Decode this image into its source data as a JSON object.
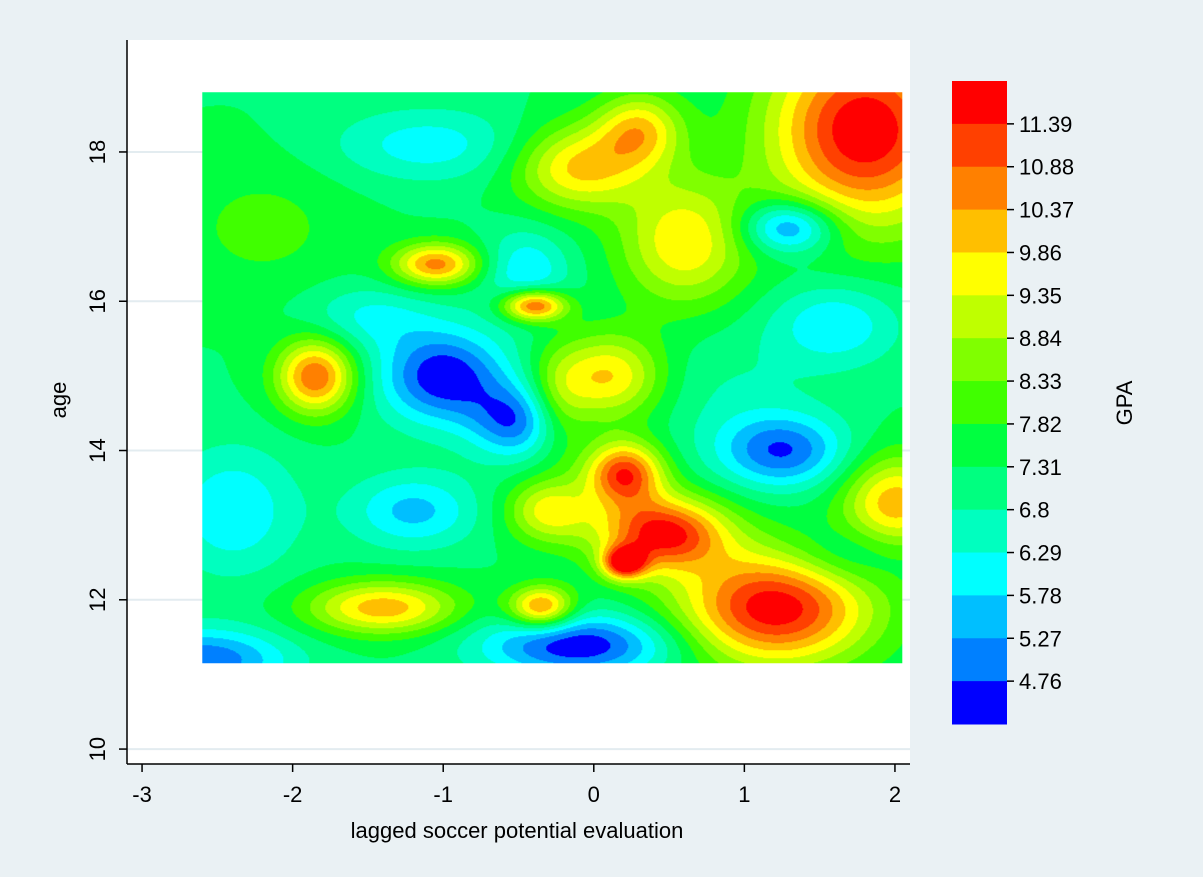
{
  "chart_data": {
    "type": "heatmap",
    "title": "",
    "xlabel": "lagged soccer potential evaluation",
    "ylabel": "age",
    "xlim": [
      -3.1,
      2.1
    ],
    "ylim": [
      9.8,
      19.5
    ],
    "x_ticks": [
      -3,
      -2,
      -1,
      0,
      1,
      2
    ],
    "y_ticks": [
      10,
      12,
      14,
      16,
      18
    ],
    "grid": true,
    "data_extent": {
      "x": [
        -2.6,
        2.05
      ],
      "y": [
        11.15,
        18.8
      ]
    },
    "colorbar": {
      "label": "GPA",
      "placement": "right",
      "levels": [
        "11.39",
        "10.88",
        "10.37",
        "9.86",
        "9.35",
        "8.84",
        "8.33",
        "7.82",
        "7.31",
        "6.8",
        "6.29",
        "5.78",
        "5.27",
        "4.76"
      ],
      "colors": [
        "#ff0000",
        "#ff4000",
        "#ff8000",
        "#ffbf00",
        "#ffff00",
        "#bfff00",
        "#80ff00",
        "#40ff00",
        "#00ff40",
        "#00ff80",
        "#00ffbf",
        "#00ffff",
        "#00bfff",
        "#0080ff",
        "#0000ff"
      ]
    },
    "z_range": [
      4.25,
      11.9
    ],
    "base_value": 7.3,
    "features": [
      {
        "x": 1.8,
        "y": 18.3,
        "value": 11.9,
        "sx": 0.45,
        "sy": 0.9
      },
      {
        "x": 1.3,
        "y": 17.0,
        "value": 4.6,
        "sx": 0.22,
        "sy": 0.25
      },
      {
        "x": -1.0,
        "y": 15.0,
        "value": 4.3,
        "sx": 0.3,
        "sy": 0.45
      },
      {
        "x": -0.5,
        "y": 14.4,
        "value": 4.8,
        "sx": 0.22,
        "sy": 0.35
      },
      {
        "x": 1.25,
        "y": 14.0,
        "value": 4.8,
        "sx": 0.3,
        "sy": 0.35
      },
      {
        "x": 1.2,
        "y": 11.9,
        "value": 11.8,
        "sx": 0.45,
        "sy": 0.55
      },
      {
        "x": 0.45,
        "y": 12.9,
        "value": 11.6,
        "sx": 0.3,
        "sy": 0.35
      },
      {
        "x": 0.2,
        "y": 13.7,
        "value": 11.3,
        "sx": 0.18,
        "sy": 0.3
      },
      {
        "x": 0.2,
        "y": 12.5,
        "value": 11.3,
        "sx": 0.1,
        "sy": 0.15
      },
      {
        "x": -0.1,
        "y": 11.4,
        "value": 4.3,
        "sx": 0.45,
        "sy": 0.3
      },
      {
        "x": -2.6,
        "y": 11.2,
        "value": 4.8,
        "sx": 0.4,
        "sy": 0.3
      },
      {
        "x": -1.85,
        "y": 15.0,
        "value": 10.9,
        "sx": 0.18,
        "sy": 0.35
      },
      {
        "x": -1.05,
        "y": 16.5,
        "value": 10.6,
        "sx": 0.2,
        "sy": 0.2
      },
      {
        "x": -0.45,
        "y": 16.4,
        "value": 5.8,
        "sx": 0.2,
        "sy": 0.4
      },
      {
        "x": -0.4,
        "y": 15.95,
        "value": 11.4,
        "sx": 0.15,
        "sy": 0.15
      },
      {
        "x": -1.1,
        "y": 18.1,
        "value": 6.0,
        "sx": 0.45,
        "sy": 0.35
      },
      {
        "x": -0.1,
        "y": 17.8,
        "value": 10.0,
        "sx": 0.3,
        "sy": 0.4
      },
      {
        "x": 0.3,
        "y": 18.3,
        "value": 9.8,
        "sx": 0.2,
        "sy": 0.35
      },
      {
        "x": 1.6,
        "y": 15.7,
        "value": 5.8,
        "sx": 0.3,
        "sy": 0.4
      },
      {
        "x": -2.4,
        "y": 13.2,
        "value": 5.8,
        "sx": 0.3,
        "sy": 0.6
      },
      {
        "x": -1.2,
        "y": 13.2,
        "value": 5.6,
        "sx": 0.3,
        "sy": 0.35
      },
      {
        "x": -1.4,
        "y": 11.9,
        "value": 10.2,
        "sx": 0.35,
        "sy": 0.25
      },
      {
        "x": 0.6,
        "y": 16.8,
        "value": 9.8,
        "sx": 0.3,
        "sy": 0.6
      },
      {
        "x": 0.1,
        "y": 15.0,
        "value": 9.9,
        "sx": 0.25,
        "sy": 0.4
      },
      {
        "x": 2.0,
        "y": 13.3,
        "value": 10.2,
        "sx": 0.25,
        "sy": 0.45
      },
      {
        "x": -0.35,
        "y": 11.9,
        "value": 10.8,
        "sx": 0.15,
        "sy": 0.2
      },
      {
        "x": -2.2,
        "y": 17.0,
        "value": 8.0,
        "sx": 0.4,
        "sy": 0.6
      },
      {
        "x": -1.5,
        "y": 15.8,
        "value": 6.2,
        "sx": 0.3,
        "sy": 0.3
      },
      {
        "x": -0.25,
        "y": 14.6,
        "value": 8.8,
        "sx": 0.15,
        "sy": 0.5
      },
      {
        "x": 0.9,
        "y": 14.8,
        "value": 6.8,
        "sx": 0.4,
        "sy": 0.6
      },
      {
        "x": -0.3,
        "y": 13.2,
        "value": 9.6,
        "sx": 0.2,
        "sy": 0.3
      },
      {
        "x": 1.7,
        "y": 12.6,
        "value": 6.2,
        "sx": 0.3,
        "sy": 0.3
      }
    ]
  }
}
